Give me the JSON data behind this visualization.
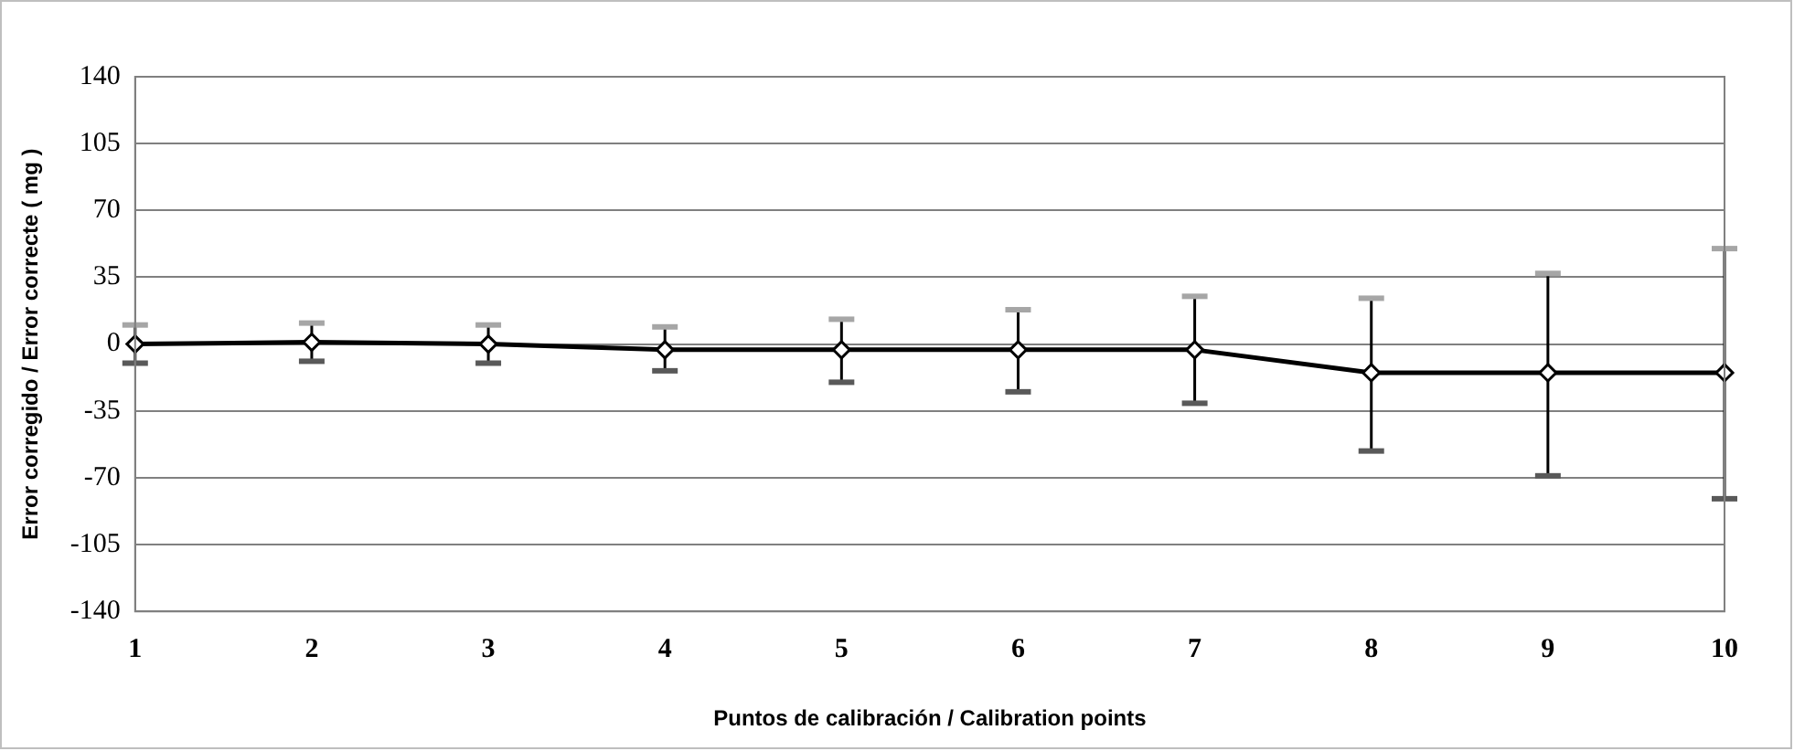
{
  "chart_data": {
    "type": "line",
    "xlabel": "Puntos de calibración / Calibration points",
    "ylabel": "Error corregido / Error correcte ( mg )",
    "categories": [
      "1",
      "2",
      "3",
      "4",
      "5",
      "6",
      "7",
      "8",
      "9",
      "10"
    ],
    "series": [
      {
        "color": "#000000",
        "values": [
          0,
          1,
          0,
          -3,
          -3,
          -3,
          -3,
          -15,
          -15,
          -15
        ],
        "errors": [
          [
            -10,
            10
          ],
          [
            -9,
            11
          ],
          [
            -10,
            10
          ],
          [
            -14,
            9
          ],
          [
            -20,
            13
          ],
          [
            -25,
            18
          ],
          [
            -31,
            25
          ],
          [
            -56,
            24
          ],
          [
            -69,
            37
          ],
          [
            -81,
            50
          ]
        ]
      }
    ],
    "ylim": [
      -140,
      140
    ],
    "yticks": [
      -140,
      -105,
      -70,
      -35,
      0,
      35,
      70,
      105,
      140
    ],
    "grid": "y",
    "legend": false,
    "marker": "diamond",
    "line_style": "solid"
  }
}
